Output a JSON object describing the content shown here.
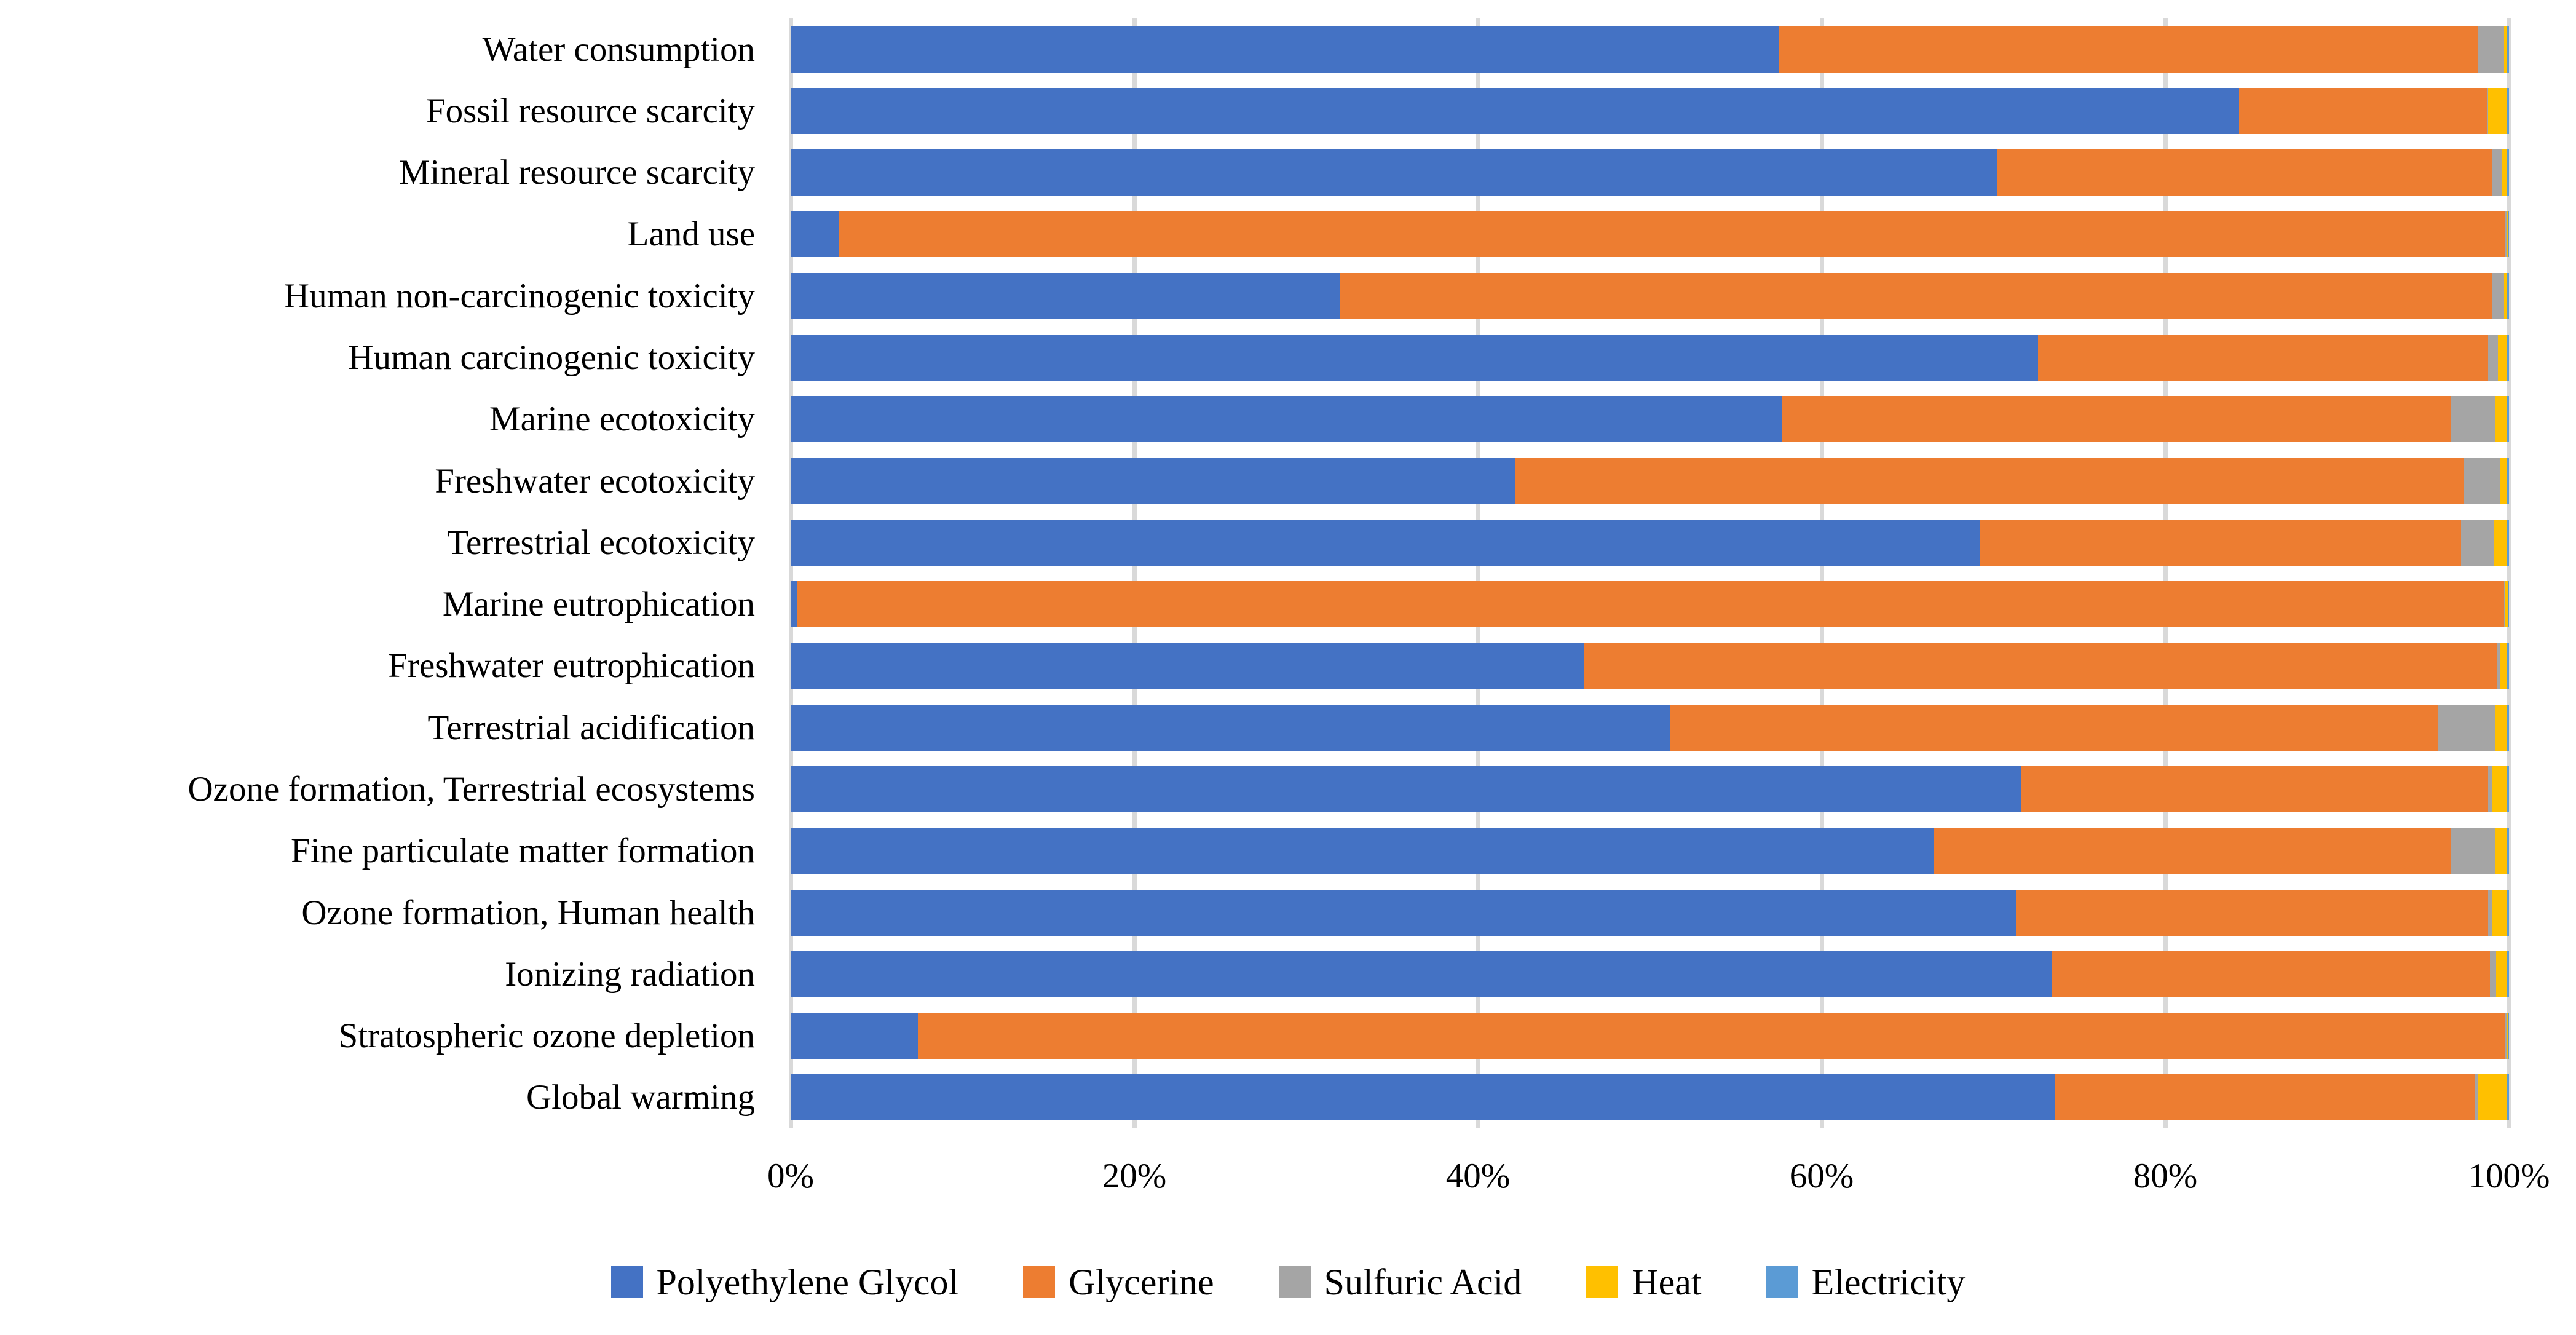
{
  "chart_data": {
    "type": "bar",
    "variant": "horizontal-stacked-100",
    "title": "",
    "xlabel": "",
    "ylabel": "",
    "unit": "%",
    "grid": true,
    "legend_position": "bottom",
    "x_axis": {
      "min": 0,
      "max": 100,
      "ticks": [
        "0%",
        "20%",
        "40%",
        "60%",
        "80%",
        "100%"
      ],
      "tick_values": [
        0,
        20,
        40,
        60,
        80,
        100
      ]
    },
    "categories": [
      "Water consumption",
      "Fossil resource scarcity",
      "Mineral resource scarcity",
      "Land use",
      "Human non-carcinogenic toxicity",
      "Human carcinogenic toxicity",
      "Marine ecotoxicity",
      "Freshwater ecotoxicity",
      "Terrestrial ecotoxicity",
      "Marine eutrophication",
      "Freshwater eutrophication",
      "Terrestrial acidification",
      "Ozone formation, Terrestrial ecosystems",
      "Fine particulate matter formation",
      "Ozone formation, Human health",
      "Ionizing radiation",
      "Stratospheric ozone depletion",
      "Global warming"
    ],
    "series": [
      {
        "name": "Polyethylene Glycol",
        "color": "#4472C4",
        "values": [
          57.5,
          84.3,
          70.2,
          2.8,
          32.0,
          72.6,
          57.7,
          42.2,
          69.2,
          0.4,
          46.2,
          51.2,
          71.6,
          66.5,
          71.3,
          73.4,
          7.4,
          73.6
        ]
      },
      {
        "name": "Glycerine",
        "color": "#ED7D31",
        "values": [
          40.7,
          14.4,
          28.8,
          97.0,
          67.0,
          26.2,
          38.9,
          55.2,
          28.0,
          99.3,
          53.1,
          44.7,
          27.2,
          30.1,
          27.5,
          25.5,
          92.4,
          24.4
        ]
      },
      {
        "name": "Sulfuric Acid",
        "color": "#A5A5A5",
        "values": [
          1.5,
          0.1,
          0.6,
          0.1,
          0.7,
          0.55,
          2.6,
          2.1,
          1.9,
          0.1,
          0.15,
          3.3,
          0.2,
          2.6,
          0.2,
          0.35,
          0.05,
          0.2
        ]
      },
      {
        "name": "Heat",
        "color": "#FFC000",
        "values": [
          0.2,
          1.1,
          0.3,
          0.05,
          0.2,
          0.55,
          0.7,
          0.4,
          0.8,
          0.15,
          0.45,
          0.7,
          0.9,
          0.7,
          0.9,
          0.65,
          0.1,
          1.7
        ]
      },
      {
        "name": "Electricity",
        "color": "#5B9BD5",
        "values": [
          0.1,
          0.1,
          0.1,
          0.05,
          0.1,
          0.1,
          0.1,
          0.1,
          0.1,
          0.05,
          0.1,
          0.1,
          0.1,
          0.1,
          0.1,
          0.1,
          0.05,
          0.1
        ]
      }
    ]
  },
  "colors": {
    "background": "#FFFFFF",
    "gridline": "#D9D9D9",
    "text": "#000000"
  }
}
